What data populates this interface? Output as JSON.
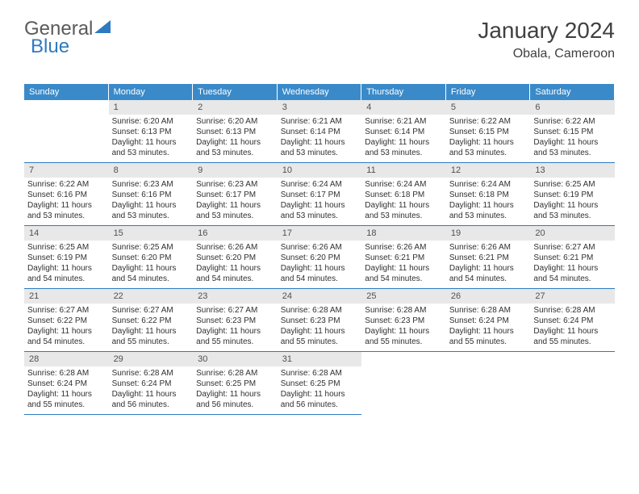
{
  "logo": {
    "text1": "General",
    "text2": "Blue"
  },
  "header": {
    "month": "January 2024",
    "location": "Obala, Cameroon"
  },
  "dayHeaders": [
    "Sunday",
    "Monday",
    "Tuesday",
    "Wednesday",
    "Thursday",
    "Friday",
    "Saturday"
  ],
  "colors": {
    "headerBg": "#3a8ac9",
    "border": "#2e7ac0",
    "dayNumBg": "#e8e8e8",
    "text": "#303030"
  },
  "startOffset": 1,
  "daysInMonth": 31,
  "days": {
    "1": {
      "sunrise": "6:20 AM",
      "sunset": "6:13 PM",
      "daylight": "11 hours and 53 minutes."
    },
    "2": {
      "sunrise": "6:20 AM",
      "sunset": "6:13 PM",
      "daylight": "11 hours and 53 minutes."
    },
    "3": {
      "sunrise": "6:21 AM",
      "sunset": "6:14 PM",
      "daylight": "11 hours and 53 minutes."
    },
    "4": {
      "sunrise": "6:21 AM",
      "sunset": "6:14 PM",
      "daylight": "11 hours and 53 minutes."
    },
    "5": {
      "sunrise": "6:22 AM",
      "sunset": "6:15 PM",
      "daylight": "11 hours and 53 minutes."
    },
    "6": {
      "sunrise": "6:22 AM",
      "sunset": "6:15 PM",
      "daylight": "11 hours and 53 minutes."
    },
    "7": {
      "sunrise": "6:22 AM",
      "sunset": "6:16 PM",
      "daylight": "11 hours and 53 minutes."
    },
    "8": {
      "sunrise": "6:23 AM",
      "sunset": "6:16 PM",
      "daylight": "11 hours and 53 minutes."
    },
    "9": {
      "sunrise": "6:23 AM",
      "sunset": "6:17 PM",
      "daylight": "11 hours and 53 minutes."
    },
    "10": {
      "sunrise": "6:24 AM",
      "sunset": "6:17 PM",
      "daylight": "11 hours and 53 minutes."
    },
    "11": {
      "sunrise": "6:24 AM",
      "sunset": "6:18 PM",
      "daylight": "11 hours and 53 minutes."
    },
    "12": {
      "sunrise": "6:24 AM",
      "sunset": "6:18 PM",
      "daylight": "11 hours and 53 minutes."
    },
    "13": {
      "sunrise": "6:25 AM",
      "sunset": "6:19 PM",
      "daylight": "11 hours and 53 minutes."
    },
    "14": {
      "sunrise": "6:25 AM",
      "sunset": "6:19 PM",
      "daylight": "11 hours and 54 minutes."
    },
    "15": {
      "sunrise": "6:25 AM",
      "sunset": "6:20 PM",
      "daylight": "11 hours and 54 minutes."
    },
    "16": {
      "sunrise": "6:26 AM",
      "sunset": "6:20 PM",
      "daylight": "11 hours and 54 minutes."
    },
    "17": {
      "sunrise": "6:26 AM",
      "sunset": "6:20 PM",
      "daylight": "11 hours and 54 minutes."
    },
    "18": {
      "sunrise": "6:26 AM",
      "sunset": "6:21 PM",
      "daylight": "11 hours and 54 minutes."
    },
    "19": {
      "sunrise": "6:26 AM",
      "sunset": "6:21 PM",
      "daylight": "11 hours and 54 minutes."
    },
    "20": {
      "sunrise": "6:27 AM",
      "sunset": "6:21 PM",
      "daylight": "11 hours and 54 minutes."
    },
    "21": {
      "sunrise": "6:27 AM",
      "sunset": "6:22 PM",
      "daylight": "11 hours and 54 minutes."
    },
    "22": {
      "sunrise": "6:27 AM",
      "sunset": "6:22 PM",
      "daylight": "11 hours and 55 minutes."
    },
    "23": {
      "sunrise": "6:27 AM",
      "sunset": "6:23 PM",
      "daylight": "11 hours and 55 minutes."
    },
    "24": {
      "sunrise": "6:28 AM",
      "sunset": "6:23 PM",
      "daylight": "11 hours and 55 minutes."
    },
    "25": {
      "sunrise": "6:28 AM",
      "sunset": "6:23 PM",
      "daylight": "11 hours and 55 minutes."
    },
    "26": {
      "sunrise": "6:28 AM",
      "sunset": "6:24 PM",
      "daylight": "11 hours and 55 minutes."
    },
    "27": {
      "sunrise": "6:28 AM",
      "sunset": "6:24 PM",
      "daylight": "11 hours and 55 minutes."
    },
    "28": {
      "sunrise": "6:28 AM",
      "sunset": "6:24 PM",
      "daylight": "11 hours and 55 minutes."
    },
    "29": {
      "sunrise": "6:28 AM",
      "sunset": "6:24 PM",
      "daylight": "11 hours and 56 minutes."
    },
    "30": {
      "sunrise": "6:28 AM",
      "sunset": "6:25 PM",
      "daylight": "11 hours and 56 minutes."
    },
    "31": {
      "sunrise": "6:28 AM",
      "sunset": "6:25 PM",
      "daylight": "11 hours and 56 minutes."
    }
  },
  "labels": {
    "sunrise": "Sunrise:",
    "sunset": "Sunset:",
    "daylight": "Daylight:"
  }
}
